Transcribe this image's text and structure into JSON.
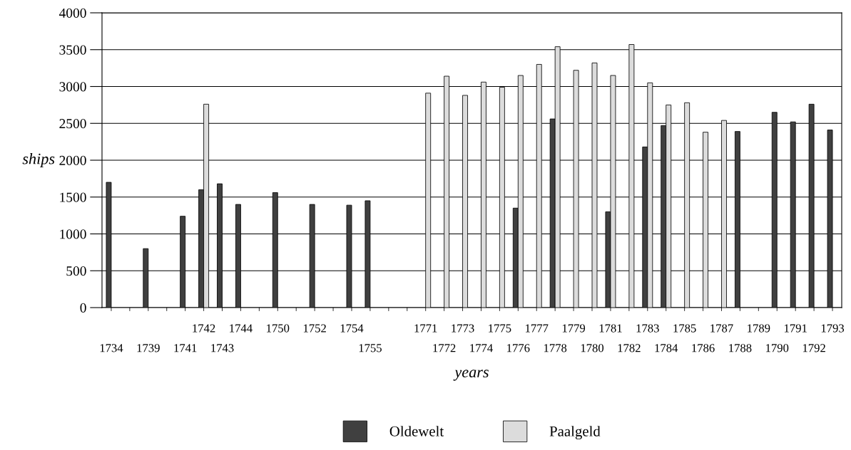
{
  "chart_data": {
    "type": "bar",
    "xlabel": "years",
    "ylabel": "ships",
    "categories": [
      "1734",
      null,
      "1739",
      null,
      "1741",
      "1742",
      "1743",
      "1744",
      null,
      "1750",
      null,
      "1752",
      null,
      "1754",
      "1755",
      null,
      null,
      "1771",
      "1772",
      "1773",
      "1774",
      "1775",
      "1776",
      "1777",
      "1778",
      "1779",
      "1780",
      "1781",
      "1782",
      "1783",
      "1784",
      "1785",
      "1786",
      "1787",
      "1788",
      "1789",
      "1790",
      "1791",
      "1792",
      "1793"
    ],
    "series": [
      {
        "name": "Oldewelt",
        "color": "#404040",
        "values": [
          1700,
          null,
          800,
          null,
          1240,
          1600,
          1680,
          1400,
          null,
          1560,
          null,
          1400,
          null,
          1390,
          1450,
          null,
          null,
          null,
          null,
          null,
          null,
          null,
          1350,
          null,
          2560,
          null,
          null,
          1300,
          null,
          2180,
          2470,
          null,
          null,
          null,
          2390,
          null,
          2650,
          2520,
          2760,
          2410
        ]
      },
      {
        "name": "Paalgeld",
        "color": "#dcdcdc",
        "values": [
          null,
          null,
          null,
          null,
          null,
          2760,
          null,
          null,
          null,
          null,
          null,
          null,
          null,
          null,
          null,
          null,
          null,
          2910,
          3140,
          2880,
          3060,
          2990,
          3150,
          3300,
          3540,
          3220,
          3320,
          3150,
          3570,
          3050,
          2750,
          2780,
          2380,
          2540,
          null,
          null,
          null,
          null,
          null,
          null
        ]
      }
    ],
    "ylim": [
      0,
      4000
    ],
    "yticks": [
      0,
      500,
      1000,
      1500,
      2000,
      2500,
      3000,
      3500,
      4000
    ],
    "grid": "y",
    "legend": "bottom"
  }
}
